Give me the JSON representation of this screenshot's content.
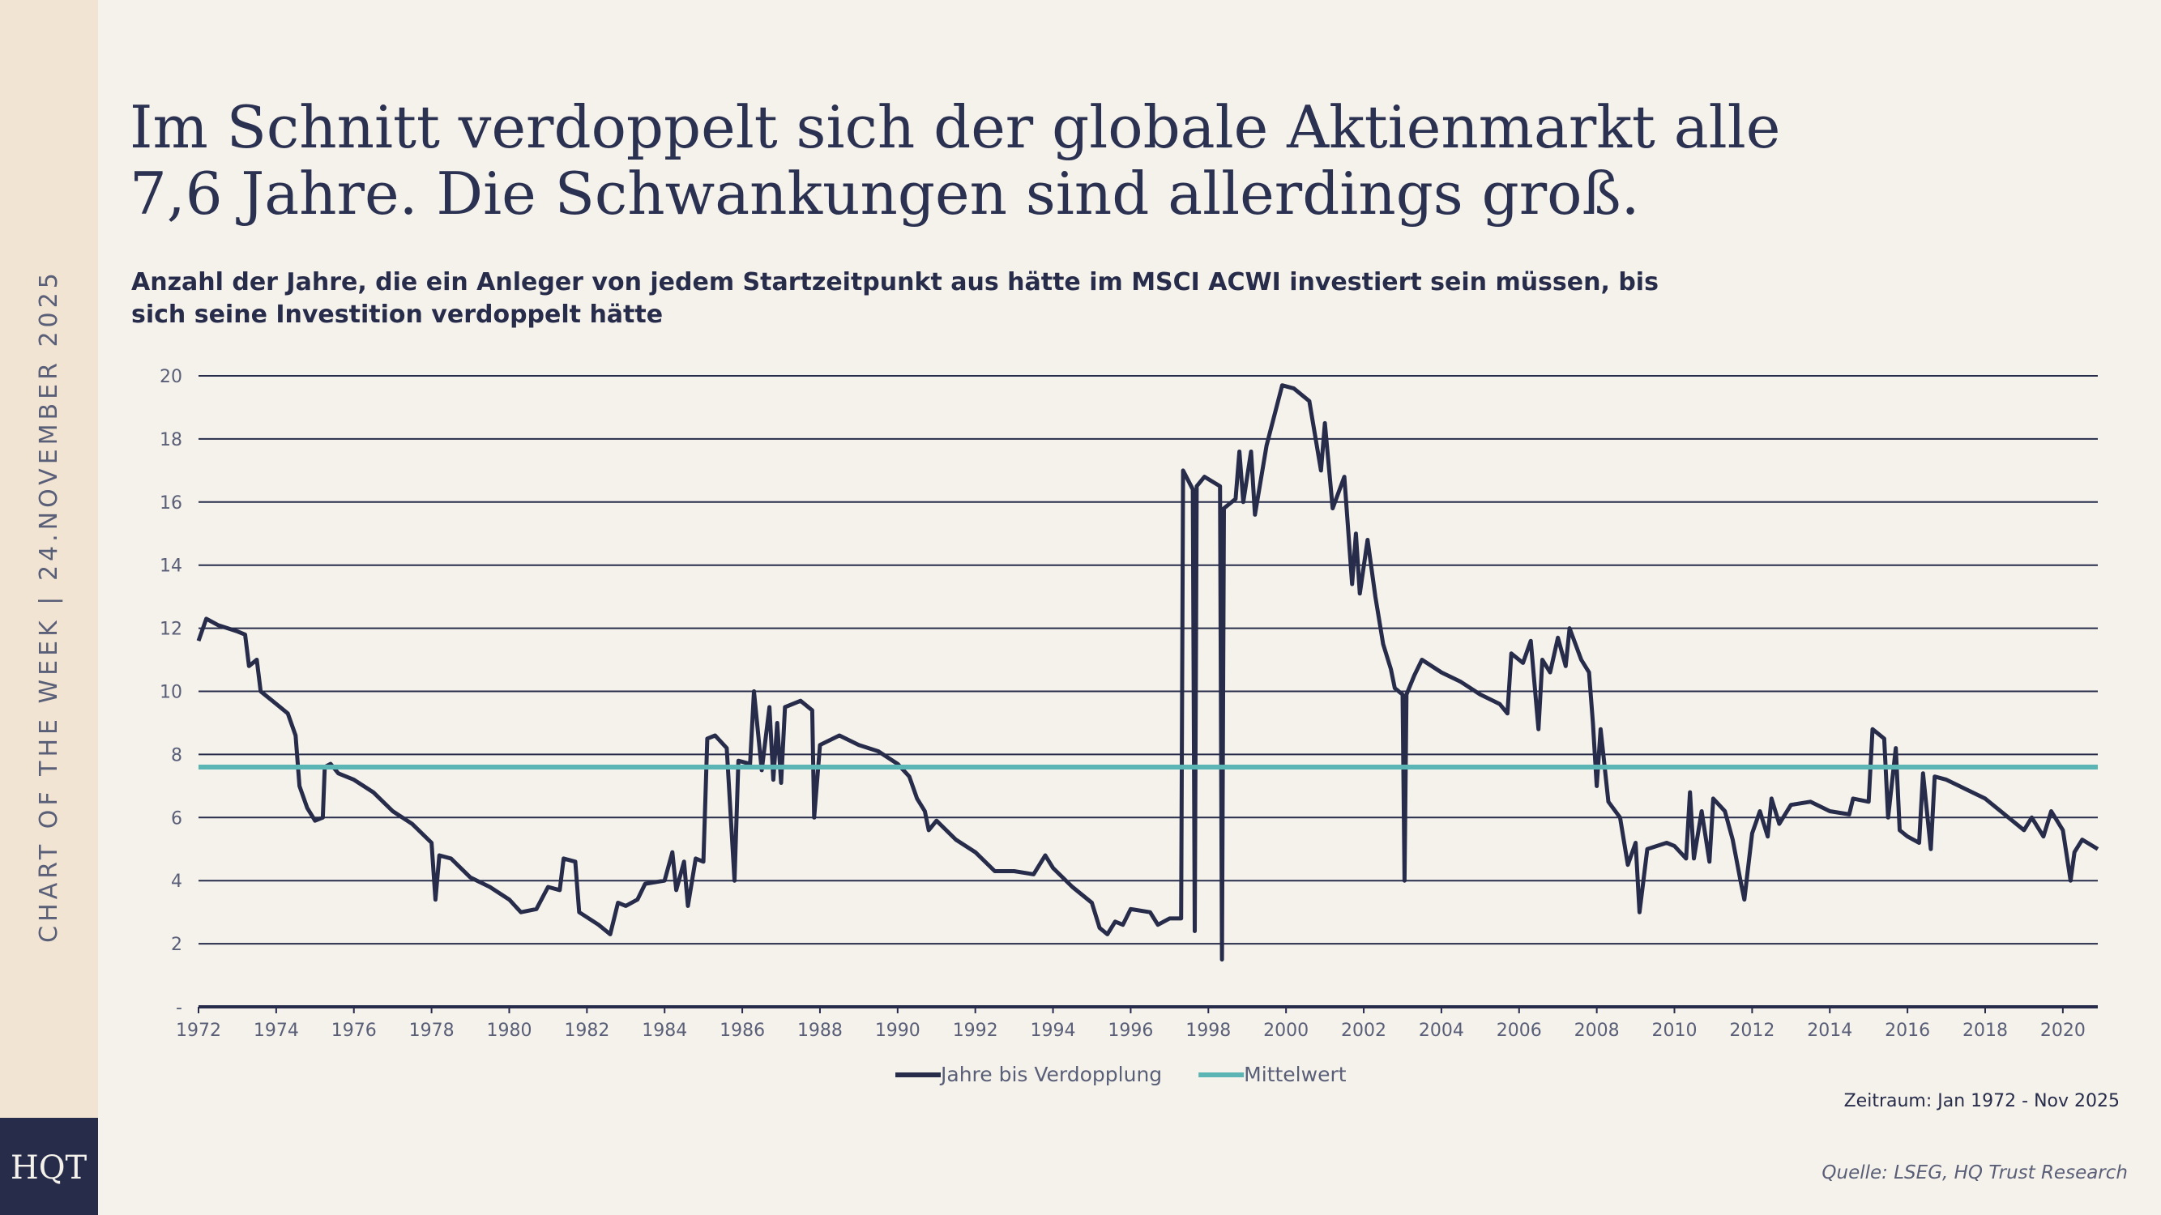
{
  "sidebar": "CHART OF THE WEEK | 24.NOVEMBER 2025",
  "logo": "HQT",
  "chart_data": {
    "type": "line",
    "title": "Im Schnitt verdoppelt sich der globale Aktienmarkt alle 7,6 Jahre. Die Schwankungen sind allerdings groß.",
    "subtitle": "Anzahl der Jahre, die ein Anleger von jedem Startzeitpunkt aus hätte im MSCI ACWI investiert sein müssen, bis sich seine Investition verdoppelt hätte",
    "note": "Zeitraum: Jan 1972 - Nov 2025",
    "source": "Quelle: LSEG, HQ Trust Research",
    "xlim": [
      1972,
      2020.9
    ],
    "xticks": [
      1972,
      1974,
      1976,
      1978,
      1980,
      1982,
      1984,
      1986,
      1988,
      1990,
      1992,
      1994,
      1996,
      1998,
      2000,
      2002,
      2004,
      2006,
      2008,
      2010,
      2012,
      2014,
      2016,
      2018,
      2020
    ],
    "ylim": [
      0,
      20
    ],
    "yticks": [
      {
        "value": 0,
        "label": "-"
      },
      2,
      4,
      6,
      8,
      10,
      12,
      14,
      16,
      18,
      20
    ],
    "grid": true,
    "legend": "bottom",
    "series": [
      {
        "name": "Jahre bis Verdopplung",
        "color": "#272c4a",
        "x": [
          1972.0,
          1972.2,
          1972.5,
          1973.0,
          1973.2,
          1973.3,
          1973.5,
          1973.6,
          1974.0,
          1974.3,
          1974.5,
          1974.6,
          1974.8,
          1975.0,
          1975.2,
          1975.25,
          1975.4,
          1975.6,
          1976.0,
          1976.5,
          1977.0,
          1977.5,
          1978.0,
          1978.1,
          1978.2,
          1978.5,
          1979.0,
          1979.5,
          1980.0,
          1980.3,
          1980.7,
          1981.0,
          1981.3,
          1981.4,
          1981.7,
          1981.8,
          1982.3,
          1982.6,
          1982.8,
          1983.0,
          1983.3,
          1983.5,
          1984.0,
          1984.2,
          1984.3,
          1984.5,
          1984.6,
          1984.8,
          1985.0,
          1985.1,
          1985.3,
          1985.6,
          1985.8,
          1985.9,
          1986.2,
          1986.3,
          1986.5,
          1986.7,
          1986.8,
          1986.9,
          1987.0,
          1987.1,
          1987.5,
          1987.8,
          1987.85,
          1988.0,
          1988.5,
          1989.0,
          1989.5,
          1990.0,
          1990.3,
          1990.5,
          1990.7,
          1990.8,
          1991.0,
          1991.5,
          1992.0,
          1992.5,
          1993.0,
          1993.5,
          1993.8,
          1994.0,
          1994.5,
          1995.0,
          1995.2,
          1995.4,
          1995.6,
          1995.8,
          1996.0,
          1996.5,
          1996.7,
          1997.0,
          1997.3,
          1997.35,
          1997.6,
          1997.65,
          1997.7,
          1997.9,
          1998.3,
          1998.35,
          1998.4,
          1998.7,
          1998.8,
          1998.9,
          1999.1,
          1999.2,
          1999.5,
          1999.9,
          2000.2,
          2000.6,
          2000.9,
          2001.0,
          2001.2,
          2001.5,
          2001.7,
          2001.8,
          2001.9,
          2002.1,
          2002.3,
          2002.5,
          2002.7,
          2002.8,
          2003.0,
          2003.05,
          2003.1,
          2003.3,
          2003.5,
          2004.0,
          2004.5,
          2005.0,
          2005.5,
          2005.7,
          2005.8,
          2006.1,
          2006.3,
          2006.5,
          2006.6,
          2006.8,
          2007.0,
          2007.2,
          2007.3,
          2007.6,
          2007.8,
          2007.9,
          2008.0,
          2008.1,
          2008.3,
          2008.6,
          2008.8,
          2009.0,
          2009.1,
          2009.3,
          2009.8,
          2010.0,
          2010.3,
          2010.4,
          2010.5,
          2010.7,
          2010.9,
          2011.0,
          2011.3,
          2011.5,
          2011.7,
          2011.8,
          2012.0,
          2012.2,
          2012.4,
          2012.5,
          2012.7,
          2013.0,
          2013.5,
          2014.0,
          2014.5,
          2014.6,
          2015.0,
          2015.1,
          2015.4,
          2015.5,
          2015.7,
          2015.8,
          2016.0,
          2016.3,
          2016.4,
          2016.6,
          2016.7,
          2017.0,
          2017.5,
          2018.0,
          2018.5,
          2019.0,
          2019.2,
          2019.5,
          2019.7,
          2020.0,
          2020.2,
          2020.3,
          2020.5,
          2020.9
        ],
        "values": [
          11.6,
          12.3,
          12.1,
          11.9,
          11.8,
          10.8,
          11.0,
          10.0,
          9.6,
          9.3,
          8.6,
          7.0,
          6.3,
          5.9,
          6.0,
          7.6,
          7.7,
          7.4,
          7.2,
          6.8,
          6.2,
          5.8,
          5.2,
          3.4,
          4.8,
          4.7,
          4.1,
          3.8,
          3.4,
          3.0,
          3.1,
          3.8,
          3.7,
          4.7,
          4.6,
          3.0,
          2.6,
          2.3,
          3.3,
          3.2,
          3.4,
          3.9,
          4.0,
          4.9,
          3.7,
          4.6,
          3.2,
          4.7,
          4.6,
          8.5,
          8.6,
          8.2,
          4.0,
          7.8,
          7.7,
          10.0,
          7.5,
          9.5,
          7.2,
          9.0,
          7.1,
          9.5,
          9.7,
          9.4,
          6.0,
          8.3,
          8.6,
          8.3,
          8.1,
          7.7,
          7.3,
          6.6,
          6.2,
          5.6,
          5.9,
          5.3,
          4.9,
          4.3,
          4.3,
          4.2,
          4.8,
          4.4,
          3.8,
          3.3,
          2.5,
          2.3,
          2.7,
          2.6,
          3.1,
          3.0,
          2.6,
          2.8,
          2.8,
          17.0,
          16.4,
          2.4,
          16.5,
          16.8,
          16.5,
          1.5,
          15.8,
          16.1,
          17.6,
          16.0,
          17.6,
          15.6,
          17.8,
          19.7,
          19.6,
          19.2,
          17.0,
          18.5,
          15.8,
          16.8,
          13.4,
          15.0,
          13.1,
          14.8,
          13.0,
          11.5,
          10.7,
          10.1,
          9.9,
          4.0,
          9.9,
          10.5,
          11.0,
          10.6,
          10.3,
          9.9,
          9.6,
          9.3,
          11.2,
          10.9,
          11.6,
          8.8,
          11.0,
          10.6,
          11.7,
          10.8,
          12.0,
          11.0,
          10.6,
          9.0,
          7.0,
          8.8,
          6.5,
          6.0,
          4.5,
          5.2,
          3.0,
          5.0,
          5.2,
          5.1,
          4.7,
          6.8,
          4.7,
          6.2,
          4.6,
          6.6,
          6.2,
          5.3,
          4.0,
          3.4,
          5.5,
          6.2,
          5.4,
          6.6,
          5.8,
          6.4,
          6.5,
          6.2,
          6.1,
          6.6,
          6.5,
          8.8,
          8.5,
          6.0,
          8.2,
          5.6,
          5.4,
          5.2,
          7.4,
          5.0,
          7.3,
          7.2,
          6.9,
          6.6,
          6.1,
          5.6,
          6.0,
          5.4,
          6.2,
          5.6,
          4.0,
          4.9,
          5.3,
          5.0
        ]
      },
      {
        "name": "Mittelwert",
        "color": "#5bb5b4",
        "x": [
          1972,
          2020.9
        ],
        "values": [
          7.6,
          7.6
        ]
      }
    ]
  }
}
